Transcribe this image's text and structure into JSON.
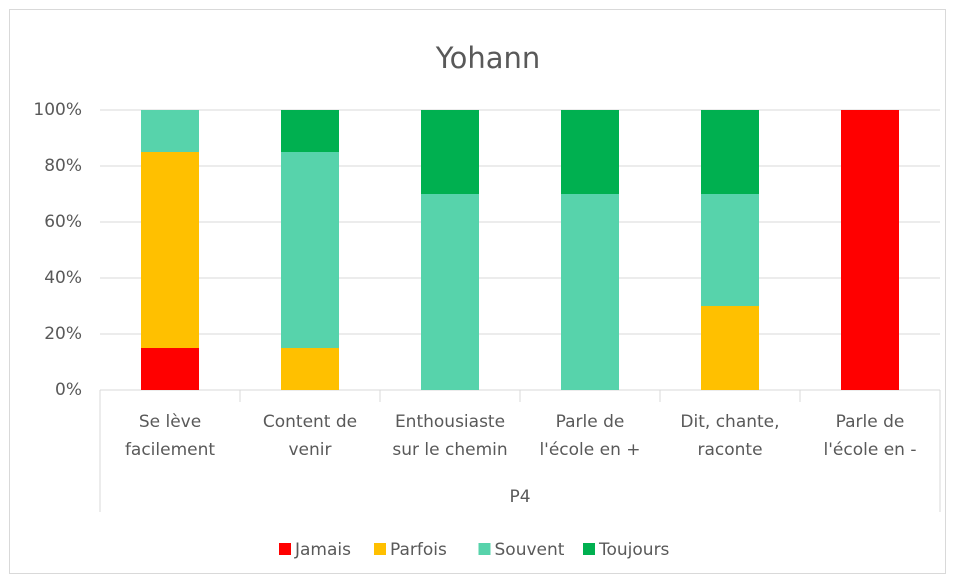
{
  "chart_data": {
    "type": "stacked_bar",
    "title": "Yohann",
    "categories": [
      [
        "Se lève",
        "facilement"
      ],
      [
        "Content de",
        "venir"
      ],
      [
        "Enthousiaste",
        "sur le chemin"
      ],
      [
        "Parle de",
        "l'école en +"
      ],
      [
        "Dit, chante,",
        "raconte"
      ],
      [
        "Parle de",
        "l'école en -"
      ]
    ],
    "group_label": "P4",
    "series": [
      {
        "name": "Jamais",
        "color": "#ff0000",
        "values": [
          15,
          0,
          0,
          0,
          0,
          100
        ]
      },
      {
        "name": "Parfois",
        "color": "#ffc000",
        "values": [
          70,
          15,
          0,
          0,
          30,
          0
        ]
      },
      {
        "name": "Souvent",
        "color": "#57d3ab",
        "values": [
          15,
          70,
          70,
          70,
          40,
          0
        ]
      },
      {
        "name": "Toujours",
        "color": "#00b050",
        "values": [
          0,
          15,
          30,
          30,
          30,
          0
        ]
      }
    ],
    "ylim": [
      0,
      100
    ],
    "yticks": [
      {
        "value": 0,
        "label": "0%"
      },
      {
        "value": 20,
        "label": "20%"
      },
      {
        "value": 40,
        "label": "40%"
      },
      {
        "value": 60,
        "label": "60%"
      },
      {
        "value": 80,
        "label": "80%"
      },
      {
        "value": 100,
        "label": "100%"
      }
    ],
    "grid": true,
    "legend": "bottom"
  }
}
